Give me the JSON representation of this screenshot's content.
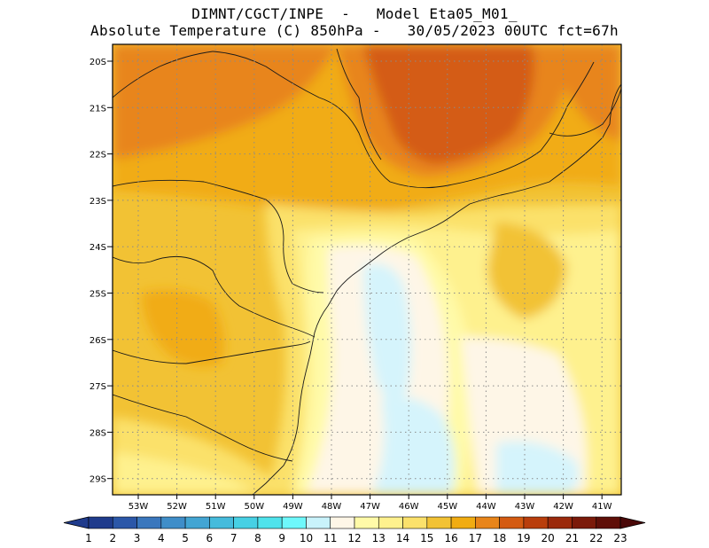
{
  "header": {
    "line1": "DIMNT/CGCT/INPE  -   Model Eta05_M01_",
    "line2": "Absolute Temperature (C) 850hPa -   30/05/2023 00UTC fct=67h"
  },
  "map": {
    "lat_labels": [
      "20S",
      "21S",
      "22S",
      "23S",
      "24S",
      "25S",
      "26S",
      "27S",
      "28S",
      "29S"
    ],
    "lon_labels": [
      "53W",
      "52W",
      "51W",
      "50W",
      "49W",
      "48W",
      "47W",
      "46W",
      "45W",
      "44W",
      "43W",
      "42W",
      "41W"
    ],
    "background_colors": {
      "t11": "#fef6e7",
      "t13": "#fef18e",
      "t14": "#fbe16b",
      "t15": "#f2c234",
      "t16": "#f1ac12",
      "t17": "#e8851a",
      "t18": "#d45b12",
      "t10": "#d5f4fc"
    }
  },
  "colorbar": {
    "labels": [
      "1",
      "2",
      "3",
      "4",
      "5",
      "6",
      "7",
      "8",
      "9",
      "10",
      "11",
      "12",
      "13",
      "14",
      "15",
      "16",
      "17",
      "18",
      "19",
      "20",
      "21",
      "22",
      "23"
    ],
    "colors": [
      "#1f3b8c",
      "#2b57a8",
      "#3a77bd",
      "#3f8ec9",
      "#43a5d3",
      "#45bbdc",
      "#47d0e4",
      "#4fe3ec",
      "#6ef8fb",
      "#c9f3fb",
      "#fef6e7",
      "#fffaa8",
      "#fef18e",
      "#fbe16b",
      "#f2c234",
      "#f1ac12",
      "#e8851a",
      "#d45b12",
      "#b93e0c",
      "#9b2a0c",
      "#7b1a0a",
      "#5f0f08"
    ]
  }
}
